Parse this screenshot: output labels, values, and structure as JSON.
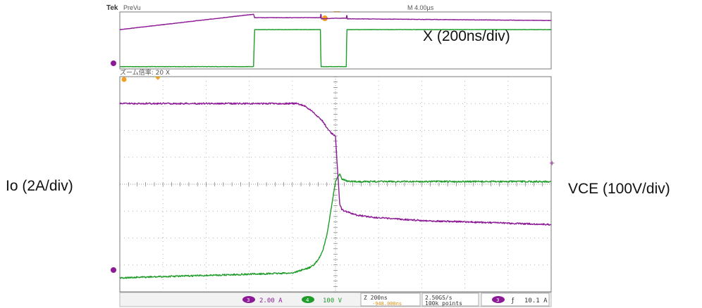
{
  "header": {
    "brand": "Tek",
    "mode": "PreVu",
    "timebase": "M 4.00µs"
  },
  "zoom_label": "ズーム倍率: 20 X",
  "annotations": {
    "x": "X (200ns/div)",
    "io": "Io (2A/div)",
    "vce": "VCE (100V/div)"
  },
  "status_bar": {
    "ch_current_num": "3",
    "ch_current_scale": "2.00 A",
    "ch_voltage_num": "4",
    "ch_voltage_scale": "100 V",
    "time_scale": "Z 200ns",
    "time_offset": "-948.000ns",
    "sample_rate": "2.50GS/s",
    "record_length": "100k points",
    "trig_channel": "3",
    "trig_slope": "ƒ",
    "trig_level": "10.1 A"
  },
  "colors": {
    "current": "#8c1a96",
    "voltage": "#1f9c29",
    "grid": "#9a9a9a",
    "border": "#7a7a7a"
  },
  "chart_data": [
    {
      "type": "line",
      "name": "overview",
      "time_unit": "µs",
      "time_per_div": 4.0,
      "xlim": [
        -20,
        20
      ],
      "series": [
        {
          "channel": "3",
          "x": [
            -20,
            -7.6,
            -7.5,
            -1.4,
            -1.35,
            -1.3,
            0,
            1.0,
            1.05,
            1.1,
            20
          ],
          "y": [
            0.69,
            0.96,
            0.9,
            0.9,
            0.99,
            0.88,
            0.89,
            0.89,
            0.96,
            0.88,
            0.85
          ]
        },
        {
          "channel": "4",
          "x": [
            -20,
            -7.6,
            -7.5,
            -1.4,
            -1.35,
            -1.3,
            1.0,
            1.05,
            20
          ],
          "y": [
            0.04,
            0.04,
            0.69,
            0.69,
            0.04,
            0.04,
            0.04,
            0.69,
            0.69
          ]
        }
      ]
    },
    {
      "type": "line",
      "name": "zoom",
      "zoom_factor": 20,
      "time_unit": "ns",
      "time_per_div": 200,
      "xlim": [
        -1000,
        1000
      ],
      "divisions": {
        "x": 10,
        "y": 8
      },
      "series": [
        {
          "channel": "3",
          "scale": "2.00 A/div",
          "unit": "A",
          "x": [
            -1000,
            -180,
            -140,
            -100,
            -60,
            -40,
            -20,
            0,
            10,
            20,
            30,
            60,
            100,
            200,
            400,
            600,
            800,
            1000
          ],
          "y": [
            10.1,
            10.1,
            9.9,
            9.4,
            8.8,
            8.3,
            7.9,
            7.7,
            5.0,
            2.6,
            2.2,
            2.0,
            1.8,
            1.6,
            1.4,
            1.3,
            1.2,
            1.1
          ]
        },
        {
          "channel": "4",
          "scale": "100 V/div",
          "unit": "V",
          "x": [
            -1000,
            -200,
            -160,
            -120,
            -100,
            -80,
            -60,
            -40,
            -20,
            0,
            20,
            30,
            60,
            100,
            200,
            1000
          ],
          "y": [
            2,
            20,
            30,
            40,
            50,
            70,
            100,
            160,
            260,
            360,
            390,
            370,
            360,
            360,
            360,
            360
          ]
        }
      ]
    }
  ]
}
